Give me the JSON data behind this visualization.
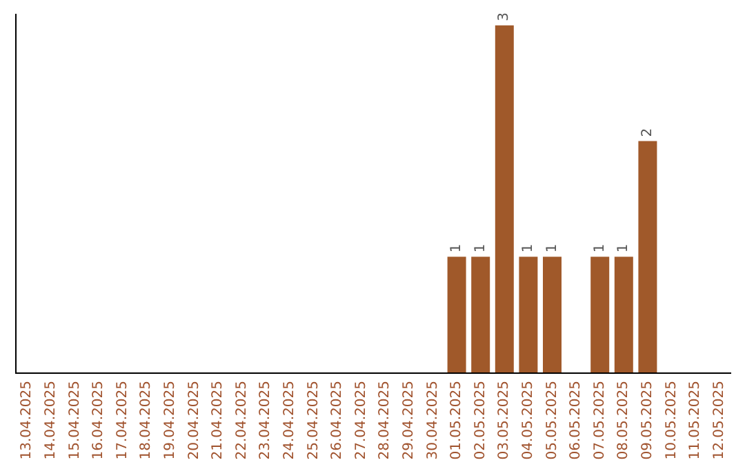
{
  "chart_data": {
    "type": "bar",
    "categories": [
      "13.04.2025",
      "14.04.2025",
      "15.04.2025",
      "16.04.2025",
      "17.04.2025",
      "18.04.2025",
      "19.04.2025",
      "20.04.2025",
      "21.04.2025",
      "22.04.2025",
      "23.04.2025",
      "24.04.2025",
      "25.04.2025",
      "26.04.2025",
      "27.04.2025",
      "28.04.2025",
      "29.04.2025",
      "30.04.2025",
      "01.05.2025",
      "02.05.2025",
      "03.05.2025",
      "04.05.2025",
      "05.05.2025",
      "06.05.2025",
      "07.05.2025",
      "08.05.2025",
      "09.05.2025",
      "10.05.2025",
      "11.05.2025",
      "12.05.2025"
    ],
    "values": [
      null,
      null,
      null,
      null,
      null,
      null,
      null,
      null,
      null,
      null,
      null,
      null,
      null,
      null,
      null,
      null,
      null,
      null,
      1,
      1,
      3,
      1,
      1,
      null,
      1,
      1,
      2,
      null,
      null,
      null
    ],
    "value_labels": [
      null,
      null,
      null,
      null,
      null,
      null,
      null,
      null,
      null,
      null,
      null,
      null,
      null,
      null,
      null,
      null,
      null,
      null,
      "1",
      "1",
      "3",
      "1",
      "1",
      null,
      "1",
      "1",
      "2",
      null,
      null,
      null
    ],
    "color": "#a0592a",
    "ylim": [
      0,
      3.1
    ],
    "tick_labels": "x"
  }
}
